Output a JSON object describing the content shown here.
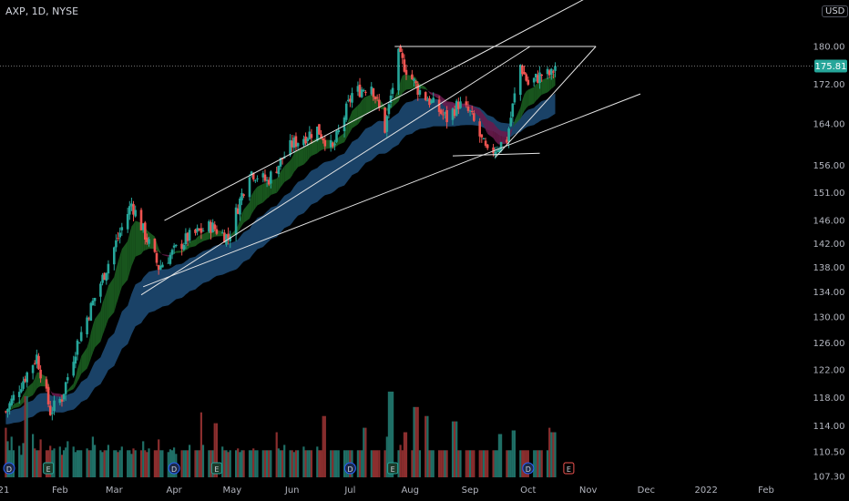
{
  "header": {
    "title": "AXP, 1D, NYSE",
    "currency": "USD"
  },
  "colors": {
    "background": "#000000",
    "up": "#26a69a",
    "down": "#ef5350",
    "volume_up": "#1f6f66",
    "volume_down": "#8b2e2e",
    "trendline": "#e6e6e6",
    "ribbon_fast_up": "#1b5e20",
    "ribbon_fast_down": "#6a1b4d",
    "ribbon_slow": "#1f4e79",
    "last_price_bg": "#26a69a"
  },
  "chart_data": {
    "type": "candlestick",
    "symbol": "AXP",
    "interval": "1D",
    "exchange": "NYSE",
    "y_axis": {
      "scale": "log",
      "ticks": [
        "180.00",
        "172.00",
        "164.00",
        "156.00",
        "151.00",
        "146.00",
        "142.00",
        "138.00",
        "134.00",
        "130.00",
        "126.00",
        "122.00",
        "118.00",
        "114.00",
        "110.50",
        "107.30"
      ],
      "ylim": [
        107.3,
        186
      ]
    },
    "x_axis": {
      "ticks": [
        "21",
        "Feb",
        "Mar",
        "Apr",
        "May",
        "Jun",
        "Jul",
        "Aug",
        "Sep",
        "Oct",
        "Nov",
        "Dec",
        "2022",
        "Feb"
      ],
      "xlim": [
        "2021-01-01",
        "2022-02-25"
      ]
    },
    "last_price": "175.81",
    "anchors": [
      {
        "date": "2021-01-04",
        "close": 116
      },
      {
        "date": "2021-01-20",
        "close": 124
      },
      {
        "date": "2021-01-27",
        "close": 116
      },
      {
        "date": "2021-02-02",
        "close": 118
      },
      {
        "date": "2021-02-10",
        "close": 126
      },
      {
        "date": "2021-02-24",
        "close": 137
      },
      {
        "date": "2021-03-10",
        "close": 149
      },
      {
        "date": "2021-03-24",
        "close": 138
      },
      {
        "date": "2021-04-08",
        "close": 143
      },
      {
        "date": "2021-04-20",
        "close": 145
      },
      {
        "date": "2021-04-29",
        "close": 143
      },
      {
        "date": "2021-05-10",
        "close": 155
      },
      {
        "date": "2021-05-19",
        "close": 153
      },
      {
        "date": "2021-06-01",
        "close": 160
      },
      {
        "date": "2021-06-14",
        "close": 163
      },
      {
        "date": "2021-06-22",
        "close": 159
      },
      {
        "date": "2021-07-02",
        "close": 170
      },
      {
        "date": "2021-07-12",
        "close": 172
      },
      {
        "date": "2021-07-19",
        "close": 163
      },
      {
        "date": "2021-07-26",
        "close": 178
      },
      {
        "date": "2021-08-05",
        "close": 171
      },
      {
        "date": "2021-08-20",
        "close": 165
      },
      {
        "date": "2021-08-26",
        "close": 168
      },
      {
        "date": "2021-09-01",
        "close": 166
      },
      {
        "date": "2021-09-10",
        "close": 158
      },
      {
        "date": "2021-09-20",
        "close": 161
      },
      {
        "date": "2021-09-27",
        "close": 176
      },
      {
        "date": "2021-10-01",
        "close": 172
      },
      {
        "date": "2021-10-08",
        "close": 174
      },
      {
        "date": "2021-10-13",
        "close": 174
      },
      {
        "date": "2021-10-15",
        "close": 175.81
      }
    ],
    "volume_ratios": [
      0.55,
      0.4,
      0.3,
      0.45,
      0.3,
      0.35,
      0.25,
      0.38,
      0.3,
      0.28,
      0.48,
      0.32,
      0.3,
      0.3,
      0.42,
      0.3,
      0.3,
      0.35,
      0.3,
      0.32,
      0.34,
      0.25,
      0.3,
      0.33,
      0.4,
      0.34,
      0.28,
      0.3,
      0.3,
      0.3,
      0.32,
      0.3,
      0.3,
      0.45,
      0.36,
      0.3,
      0.28,
      0.3,
      0.3,
      0.36,
      0.3,
      0.3,
      0.28,
      0.3,
      0.34,
      0.3,
      0.3,
      0.26,
      0.32,
      0.3,
      0.3,
      0.4,
      0.3,
      0.28,
      0.32,
      0.3,
      0.3,
      0.42,
      0.3,
      0.3,
      0.28,
      0.31,
      0.3,
      0.33,
      0.26,
      0.3,
      0.3,
      0.3,
      0.3,
      0.36,
      0.3,
      0.3,
      0.3,
      0.72,
      0.36,
      0.3,
      0.3,
      0.3,
      0.28,
      0.3,
      0.34,
      0.3,
      0.3,
      0.28,
      0.3,
      0.3,
      0.32,
      0.28,
      0.3,
      0.3,
      0.3,
      0.3,
      0.32,
      0.3,
      0.3,
      0.3,
      0.3,
      0.3,
      0.3,
      0.3,
      0.5,
      0.32,
      0.3,
      0.3,
      0.36,
      0.3,
      0.3,
      0.28,
      0.3,
      0.3,
      0.34,
      0.3,
      0.3,
      0.3,
      0.3,
      0.34,
      0.3,
      0.3,
      0.48,
      0.32,
      0.3,
      0.3,
      0.3,
      0.3,
      0.3,
      0.3,
      0.3,
      0.3,
      0.3,
      0.3,
      0.3,
      0.3,
      0.3,
      0.3,
      0.3,
      0.3,
      0.3,
      0.3,
      0.3,
      0.3,
      0.3,
      0.45,
      0.34,
      0.3,
      0.3,
      0.3,
      0.36,
      0.3,
      0.3,
      0.3,
      0.3,
      0.3,
      0.3,
      0.3,
      0.3,
      0.3,
      0.3,
      0.3,
      0.3,
      0.3,
      0.3,
      0.3,
      0.3,
      0.3,
      0.3,
      0.3,
      0.3,
      0.3,
      0.3,
      0.3,
      0.3,
      0.3,
      0.3,
      0.3,
      0.3,
      0.3,
      0.3,
      0.3,
      0.3,
      0.3,
      0.3,
      0.3,
      0.3,
      0.3,
      0.3,
      0.3,
      0.3,
      0.3,
      0.3,
      0.3,
      0.3,
      0.3,
      0.3,
      0.3,
      0.3,
      0.3,
      0.3,
      0.3,
      0.3,
      0.3,
      0.3
    ],
    "volume_spikes": [
      {
        "date": "2021-01-15",
        "ratio": 0.9
      },
      {
        "date": "2021-04-23",
        "ratio": 0.6
      },
      {
        "date": "2021-07-09",
        "ratio": 0.55
      },
      {
        "date": "2021-07-22",
        "ratio": 0.95
      },
      {
        "date": "2021-06-18",
        "ratio": 0.68
      },
      {
        "date": "2021-07-30",
        "ratio": 0.5
      },
      {
        "date": "2021-08-04",
        "ratio": 0.78
      },
      {
        "date": "2021-08-09",
        "ratio": 0.68
      },
      {
        "date": "2021-08-24",
        "ratio": 0.62
      },
      {
        "date": "2021-09-17",
        "ratio": 0.48
      },
      {
        "date": "2021-09-24",
        "ratio": 0.52
      },
      {
        "date": "2021-10-14",
        "ratio": 0.5
      }
    ],
    "trendlines": [
      {
        "from": {
          "date": "2021-03-27",
          "price": 146
        },
        "to": {
          "date": "2021-11-22",
          "price": 196
        }
      },
      {
        "from": {
          "date": "2021-03-15",
          "price": 133.5
        },
        "to": {
          "date": "2021-10-02",
          "price": 180
        }
      },
      {
        "from": {
          "date": "2021-03-16",
          "price": 134.8
        },
        "to": {
          "date": "2021-11-28",
          "price": 170
        }
      },
      {
        "from": {
          "date": "2021-07-24",
          "price": 180
        },
        "to": {
          "date": "2021-11-05",
          "price": 180
        }
      },
      {
        "from": {
          "date": "2021-11-05",
          "price": 180
        },
        "to": {
          "date": "2021-09-14",
          "price": 157.5
        }
      },
      {
        "from": {
          "date": "2021-08-23",
          "price": 157.8
        },
        "to": {
          "date": "2021-10-07",
          "price": 158.3
        }
      }
    ],
    "event_markers": [
      {
        "date": "2021-01-01",
        "label": "D",
        "kind": "dividend"
      },
      {
        "date": "2021-01-26",
        "label": "E",
        "kind": "earnings"
      },
      {
        "date": "2021-04-01",
        "label": "D",
        "kind": "dividend"
      },
      {
        "date": "2021-04-23",
        "label": "E",
        "kind": "earnings"
      },
      {
        "date": "2021-07-01",
        "label": "D",
        "kind": "dividend"
      },
      {
        "date": "2021-07-23",
        "label": "E",
        "kind": "earnings"
      },
      {
        "date": "2021-10-01",
        "label": "D",
        "kind": "dividend"
      },
      {
        "date": "2021-10-22",
        "label": "E",
        "kind": "earnings"
      }
    ]
  }
}
